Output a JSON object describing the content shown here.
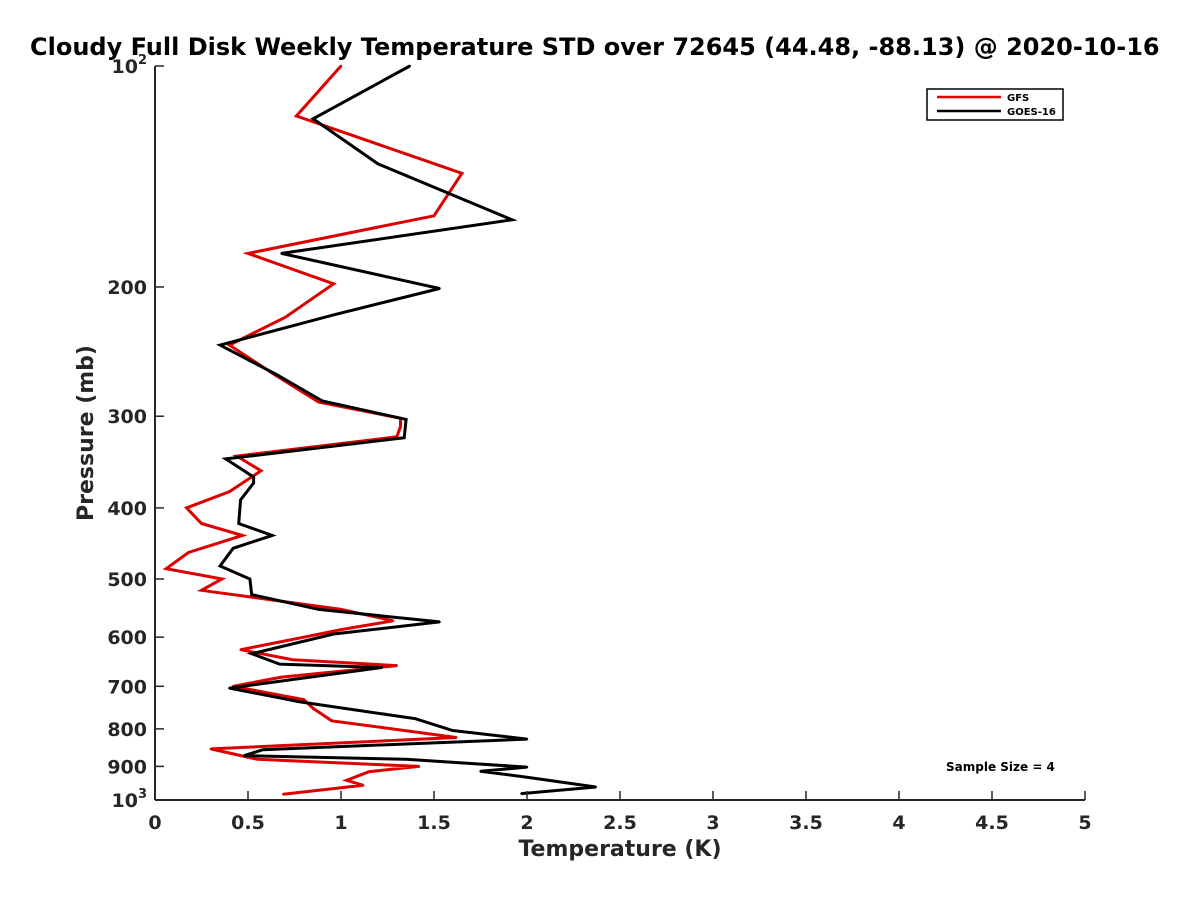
{
  "chart_data": {
    "type": "line",
    "title": "Cloudy Full Disk Weekly Temperature STD over 72645 (44.48, -88.13) @ 2020-10-16",
    "xlabel": "Temperature (K)",
    "ylabel": "Pressure (mb)",
    "xlim": [
      0,
      5
    ],
    "ylim": [
      100,
      1000
    ],
    "yscale": "log",
    "y_reversed": true,
    "grid": false,
    "legend_position": "top-right",
    "x_ticks": [
      {
        "value": 0,
        "label": "0"
      },
      {
        "value": 0.5,
        "label": "0.5"
      },
      {
        "value": 1,
        "label": "1"
      },
      {
        "value": 1.5,
        "label": "1.5"
      },
      {
        "value": 2,
        "label": "2"
      },
      {
        "value": 2.5,
        "label": "2.5"
      },
      {
        "value": 3,
        "label": "3"
      },
      {
        "value": 3.5,
        "label": "3.5"
      },
      {
        "value": 4,
        "label": "4"
      },
      {
        "value": 4.5,
        "label": "4.5"
      },
      {
        "value": 5,
        "label": "5"
      }
    ],
    "y_ticks": [
      {
        "value": 100,
        "base": "10",
        "exp": "2"
      },
      {
        "value": 200,
        "label": "200"
      },
      {
        "value": 300,
        "label": "300"
      },
      {
        "value": 400,
        "label": "400"
      },
      {
        "value": 500,
        "label": "500"
      },
      {
        "value": 600,
        "label": "600"
      },
      {
        "value": 700,
        "label": "700"
      },
      {
        "value": 800,
        "label": "800"
      },
      {
        "value": 900,
        "label": "900"
      },
      {
        "value": 1000,
        "base": "10",
        "exp": "3"
      }
    ],
    "series": [
      {
        "name": "GFS",
        "color": "#dd0000",
        "points": [
          [
            1.0,
            100
          ],
          [
            0.76,
            117
          ],
          [
            1.65,
            140
          ],
          [
            1.5,
            160
          ],
          [
            0.5,
            180
          ],
          [
            0.96,
            198
          ],
          [
            0.7,
            220
          ],
          [
            0.4,
            240
          ],
          [
            0.65,
            264
          ],
          [
            0.88,
            287
          ],
          [
            1.32,
            302
          ],
          [
            1.32,
            310
          ],
          [
            1.3,
            320
          ],
          [
            0.44,
            340
          ],
          [
            0.57,
            356
          ],
          [
            0.4,
            380
          ],
          [
            0.17,
            400
          ],
          [
            0.25,
            420
          ],
          [
            0.47,
            436
          ],
          [
            0.18,
            460
          ],
          [
            0.06,
            484
          ],
          [
            0.36,
            500
          ],
          [
            0.25,
            518
          ],
          [
            1.0,
            550
          ],
          [
            1.28,
            570
          ],
          [
            1.0,
            586
          ],
          [
            0.8,
            600
          ],
          [
            0.46,
            624
          ],
          [
            0.74,
            644
          ],
          [
            1.3,
            656
          ],
          [
            0.68,
            680
          ],
          [
            0.42,
            700
          ],
          [
            0.8,
            730
          ],
          [
            0.85,
            750
          ],
          [
            0.95,
            780
          ],
          [
            1.62,
            822
          ],
          [
            0.3,
            852
          ],
          [
            0.55,
            880
          ],
          [
            1.42,
            900
          ],
          [
            1.15,
            915
          ],
          [
            1.03,
            940
          ],
          [
            1.12,
            955
          ],
          [
            0.69,
            982
          ]
        ]
      },
      {
        "name": "GOES-16",
        "color": "#000000",
        "points": [
          [
            1.37,
            100
          ],
          [
            0.85,
            118
          ],
          [
            1.2,
            136
          ],
          [
            1.92,
            162
          ],
          [
            0.68,
            180
          ],
          [
            1.53,
            201
          ],
          [
            0.97,
            218
          ],
          [
            0.35,
            240
          ],
          [
            0.65,
            263
          ],
          [
            0.9,
            286
          ],
          [
            1.35,
            303
          ],
          [
            1.34,
            321
          ],
          [
            0.38,
            343
          ],
          [
            0.53,
            363
          ],
          [
            0.53,
            370
          ],
          [
            0.46,
            390
          ],
          [
            0.45,
            420
          ],
          [
            0.63,
            436
          ],
          [
            0.42,
            454
          ],
          [
            0.35,
            480
          ],
          [
            0.51,
            500
          ],
          [
            0.52,
            525
          ],
          [
            0.88,
            550
          ],
          [
            1.53,
            572
          ],
          [
            0.96,
            594
          ],
          [
            0.52,
            632
          ],
          [
            0.67,
            653
          ],
          [
            1.22,
            660
          ],
          [
            0.78,
            683
          ],
          [
            0.4,
            704
          ],
          [
            0.78,
            735
          ],
          [
            1.4,
            775
          ],
          [
            1.6,
            804
          ],
          [
            2.0,
            826
          ],
          [
            0.58,
            854
          ],
          [
            0.48,
            870
          ],
          [
            1.35,
            880
          ],
          [
            2.0,
            902
          ],
          [
            1.75,
            914
          ],
          [
            2.0,
            931
          ],
          [
            2.37,
            960
          ],
          [
            1.97,
            980
          ]
        ]
      }
    ],
    "annotations": [
      {
        "text": "Sample Size = 4",
        "position": "bottom-right"
      }
    ]
  }
}
